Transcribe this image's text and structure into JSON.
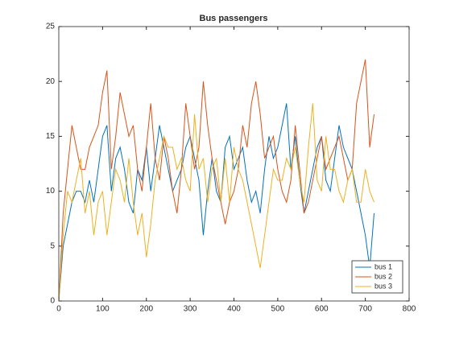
{
  "chart_data": {
    "type": "line",
    "title": "Bus passengers",
    "x": [
      0,
      10,
      20,
      30,
      40,
      50,
      60,
      70,
      80,
      90,
      100,
      110,
      120,
      130,
      140,
      150,
      160,
      170,
      180,
      190,
      200,
      210,
      220,
      230,
      240,
      250,
      260,
      270,
      280,
      290,
      300,
      310,
      320,
      330,
      340,
      350,
      360,
      370,
      380,
      390,
      400,
      410,
      420,
      430,
      440,
      450,
      460,
      470,
      480,
      490,
      500,
      510,
      520,
      530,
      540,
      550,
      560,
      570,
      580,
      590,
      600,
      610,
      620,
      630,
      640,
      650,
      660,
      670,
      680,
      690,
      700,
      710,
      720
    ],
    "series": [
      {
        "name": "bus 1",
        "color": "#0072bd",
        "values": [
          0,
          5,
          7,
          9,
          10,
          10,
          9,
          11,
          9,
          12,
          15,
          16,
          10,
          13,
          14,
          12,
          9,
          8,
          12,
          11,
          14,
          10,
          13,
          16,
          14,
          12,
          10,
          11,
          12,
          14,
          15,
          13,
          11,
          6,
          10,
          13,
          10,
          9,
          14,
          15,
          12,
          13,
          14,
          11,
          9,
          10,
          8,
          12,
          15,
          13,
          14,
          16,
          18,
          12,
          15,
          11,
          8,
          10,
          12,
          14,
          15,
          11,
          10,
          13,
          16,
          14,
          13,
          12,
          10,
          8,
          6,
          3,
          8
        ]
      },
      {
        "name": "bus 2",
        "color": "#d95319",
        "values": [
          0,
          8,
          12,
          16,
          14,
          12,
          12,
          14,
          15,
          16,
          19,
          21,
          12,
          15,
          19,
          17,
          15,
          16,
          12,
          10,
          14,
          18,
          13,
          11,
          15,
          13,
          10,
          8,
          12,
          18,
          15,
          12,
          14,
          20,
          16,
          13,
          11,
          9,
          7,
          9,
          10,
          12,
          16,
          14,
          18,
          20,
          17,
          13,
          14,
          15,
          12,
          10,
          9,
          11,
          16,
          12,
          8,
          9,
          11,
          13,
          15,
          12,
          13,
          14,
          15,
          13,
          11,
          12,
          18,
          20,
          22,
          14,
          17
        ]
      },
      {
        "name": "bus 3",
        "color": "#edb120",
        "values": [
          0,
          6,
          10,
          9,
          11,
          13,
          8,
          10,
          6,
          9,
          10,
          6,
          9,
          12,
          11,
          9,
          13,
          9,
          6,
          8,
          4,
          7,
          11,
          13,
          15,
          14,
          14,
          12,
          13,
          11,
          10,
          17,
          12,
          13,
          9,
          12,
          13,
          9,
          13,
          9,
          14,
          12,
          11,
          9,
          7,
          5,
          3,
          6,
          9,
          12,
          11,
          11,
          13,
          12,
          14,
          11,
          9,
          14,
          18,
          11,
          10,
          15,
          12,
          12,
          10,
          9,
          11,
          12,
          9,
          9,
          12,
          10,
          9
        ]
      }
    ],
    "xlim": [
      0,
      800
    ],
    "xticks": [
      0,
      100,
      200,
      300,
      400,
      500,
      600,
      700,
      800
    ],
    "ylim": [
      0,
      25
    ],
    "yticks": [
      0,
      5,
      10,
      15,
      20,
      25
    ],
    "legend": "southeast"
  }
}
